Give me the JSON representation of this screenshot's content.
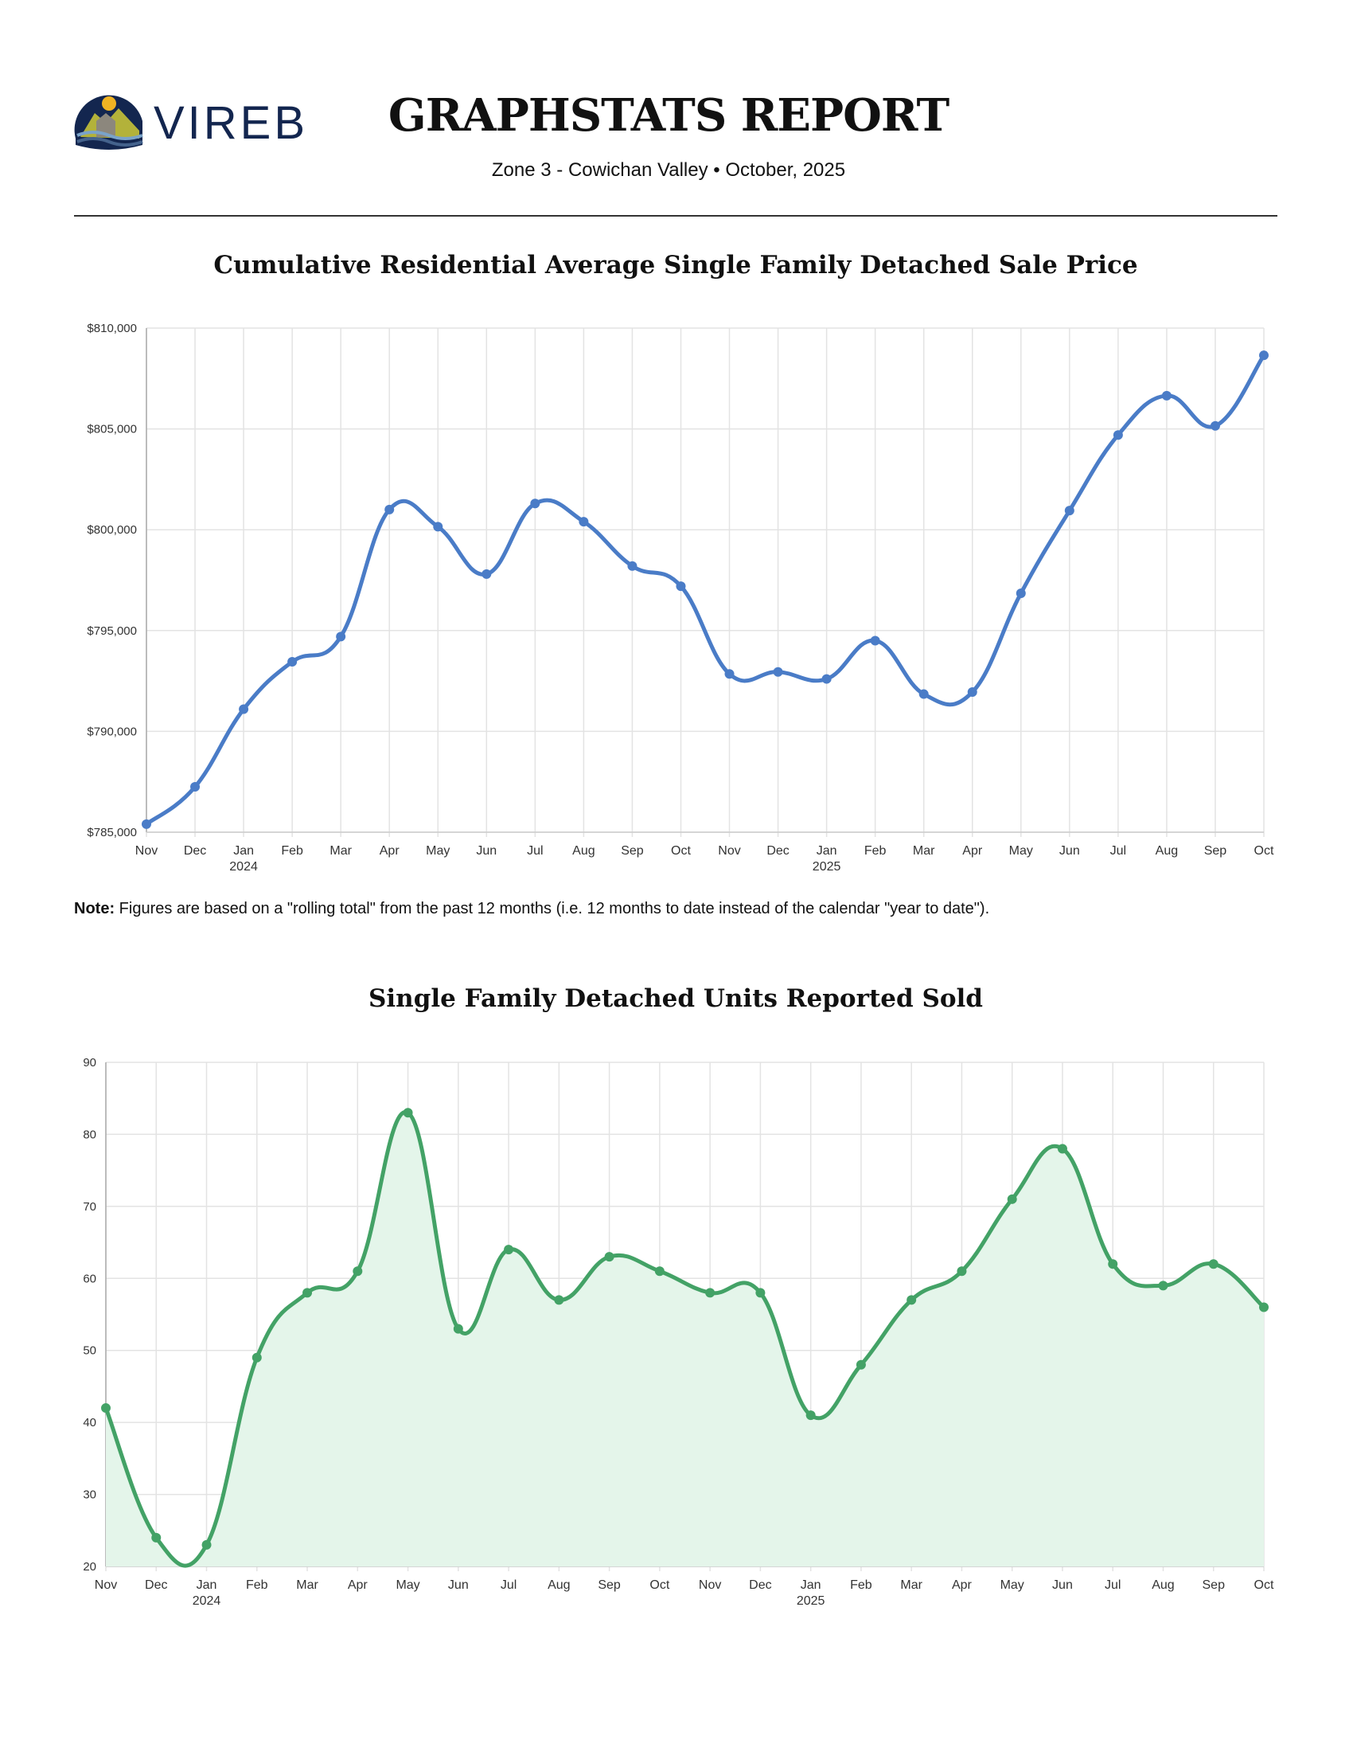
{
  "header": {
    "logo_text": "VIREB",
    "title": "GRAPHSTATS REPORT",
    "zone": "Zone 3 - Cowichan Valley",
    "separator": "•",
    "period": "October, 2025"
  },
  "note": {
    "label": "Note:",
    "text": " Figures are based on a \"rolling total\" from the past 12 months (i.e. 12 months to date instead of the calendar \"year to date\")."
  },
  "chart_data": [
    {
      "type": "line",
      "title": "Cumulative Residential Average Single Family Detached Sale Price",
      "color": "#4a7cc7",
      "fill": false,
      "categories": [
        "Nov",
        "Dec",
        "Jan",
        "Feb",
        "Mar",
        "Apr",
        "May",
        "Jun",
        "Jul",
        "Aug",
        "Sep",
        "Oct",
        "Nov",
        "Dec",
        "Jan",
        "Feb",
        "Mar",
        "Apr",
        "May",
        "Jun",
        "Jul",
        "Aug",
        "Sep",
        "Oct"
      ],
      "year_labels": {
        "2": "2024",
        "14": "2025"
      },
      "values": [
        785400,
        787250,
        791100,
        793450,
        794700,
        801000,
        800150,
        797800,
        801300,
        800400,
        798200,
        797200,
        792850,
        792950,
        792600,
        794500,
        791850,
        791950,
        796850,
        800950,
        804700,
        806650,
        805150,
        808650
      ],
      "ylim": [
        785000,
        810000
      ],
      "yticks": [
        785000,
        790000,
        795000,
        800000,
        805000,
        810000
      ],
      "ytick_labels": [
        "$785,000",
        "$790,000",
        "$795,000",
        "$800,000",
        "$805,000",
        "$810,000"
      ],
      "grid": true
    },
    {
      "type": "area",
      "title": "Single Family Detached Units Reported Sold",
      "color": "#43a266",
      "fill_color": "#e4f5ea",
      "fill": true,
      "categories": [
        "Nov",
        "Dec",
        "Jan",
        "Feb",
        "Mar",
        "Apr",
        "May",
        "Jun",
        "Jul",
        "Aug",
        "Sep",
        "Oct",
        "Nov",
        "Dec",
        "Jan",
        "Feb",
        "Mar",
        "Apr",
        "May",
        "Jun",
        "Jul",
        "Aug",
        "Sep",
        "Oct"
      ],
      "year_labels": {
        "2": "2024",
        "14": "2025"
      },
      "values": [
        42,
        24,
        23,
        49,
        58,
        61,
        83,
        53,
        64,
        57,
        63,
        61,
        58,
        58,
        41,
        48,
        57,
        61,
        71,
        78,
        62,
        59,
        62,
        56
      ],
      "ylim": [
        20,
        90
      ],
      "yticks": [
        20,
        30,
        40,
        50,
        60,
        70,
        80,
        90
      ],
      "ytick_labels": [
        "20",
        "30",
        "40",
        "50",
        "60",
        "70",
        "80",
        "90"
      ],
      "grid": true
    }
  ]
}
